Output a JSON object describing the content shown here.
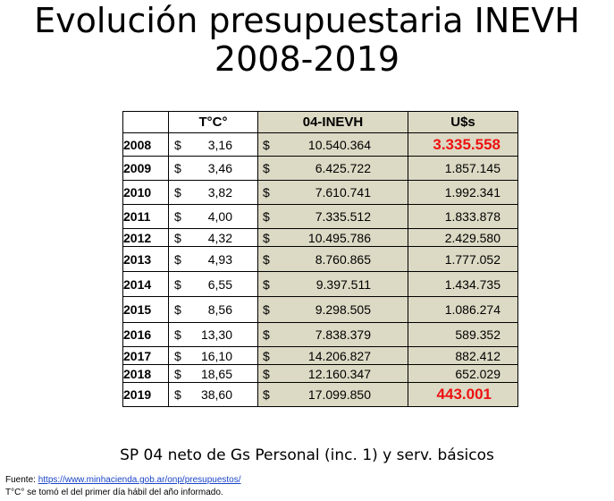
{
  "title": {
    "line1": "Evolución presupuestaria INEVH",
    "line2": "2008-2019"
  },
  "table": {
    "headers": {
      "year": "",
      "tc": "T°C°",
      "inevh": "04-INEVH",
      "usd": "U$s"
    },
    "currency": "$",
    "rows": [
      {
        "year": "2008",
        "tc": "3,16",
        "inevh": "10.540.364",
        "usd": "3.335.558",
        "highlight": true
      },
      {
        "year": "2009",
        "tc": "3,46",
        "inevh": "6.425.722",
        "usd": "1.857.145",
        "highlight": false
      },
      {
        "year": "2010",
        "tc": "3,82",
        "inevh": "7.610.741",
        "usd": "1.992.341",
        "highlight": false
      },
      {
        "year": "2011",
        "tc": "4,00",
        "inevh": "7.335.512",
        "usd": "1.833.878",
        "highlight": false
      },
      {
        "year": "2012",
        "tc": "4,32",
        "inevh": "10.495.786",
        "usd": "2.429.580",
        "highlight": false
      },
      {
        "year": "2013",
        "tc": "4,93",
        "inevh": "8.760.865",
        "usd": "1.777.052",
        "highlight": false
      },
      {
        "year": "2014",
        "tc": "6,55",
        "inevh": "9.397.511",
        "usd": "1.434.735",
        "highlight": false
      },
      {
        "year": "2015",
        "tc": "8,56",
        "inevh": "9.298.505",
        "usd": "1.086.274",
        "highlight": false
      },
      {
        "year": "2016",
        "tc": "13,30",
        "inevh": "7.838.379",
        "usd": "589.352",
        "highlight": false
      },
      {
        "year": "2017",
        "tc": "16,10",
        "inevh": "14.206.827",
        "usd": "882.412",
        "highlight": false
      },
      {
        "year": "2018",
        "tc": "18,65",
        "inevh": "12.160.347",
        "usd": "652.029",
        "highlight": false
      },
      {
        "year": "2019",
        "tc": "38,60",
        "inevh": "17.099.850",
        "usd": "443.001",
        "highlight": true
      }
    ]
  },
  "subtitle": "SP 04 neto de Gs Personal (inc. 1) y serv. básicos",
  "footer": {
    "fuente_label": "Fuente: ",
    "fuente_link": "https://www.minhacienda.gob.ar/onp/presupuestos/",
    "note": "T°C° se tomó el del primer día hábil del año informado."
  },
  "colors": {
    "shade": "#dcd9c4",
    "highlight": "#ee1111",
    "link": "#1a44c8"
  }
}
